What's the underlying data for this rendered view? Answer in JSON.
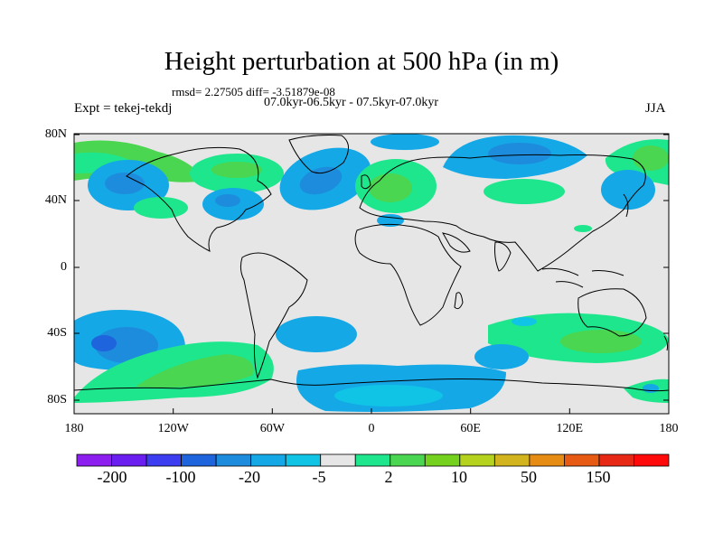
{
  "title": "Height perturbation at 500 hPa (in m)",
  "stats_line": "rmsd= 2.27505 diff= -3.51879e-08",
  "period_line": "07.0kyr-06.5kyr - 07.5kyr-07.0kyr",
  "experiment": "Expt = tekej-tekdj",
  "season": "JJA",
  "lat_labels": [
    "80N",
    "40N",
    "0",
    "40S",
    "80S"
  ],
  "lon_labels": [
    "180",
    "120W",
    "60W",
    "0",
    "60E",
    "120E",
    "180"
  ],
  "colorbar": {
    "labels": [
      "-200",
      "-100",
      "-20",
      "-5",
      "2",
      "10",
      "50",
      "150"
    ],
    "colors": [
      "#8c1ef0",
      "#6a1ef0",
      "#3c3cf0",
      "#1e64dc",
      "#1e8cdc",
      "#14a8e6",
      "#10c4e6",
      "#e6e6e6",
      "#1ee68c",
      "#4ad650",
      "#74d21e",
      "#b4d21e",
      "#d2b41e",
      "#e68c14",
      "#e65a14",
      "#e62814",
      "#ff0a0a"
    ]
  },
  "colors": {
    "land_background": "#e6e6e6",
    "coastline": "#000000"
  }
}
